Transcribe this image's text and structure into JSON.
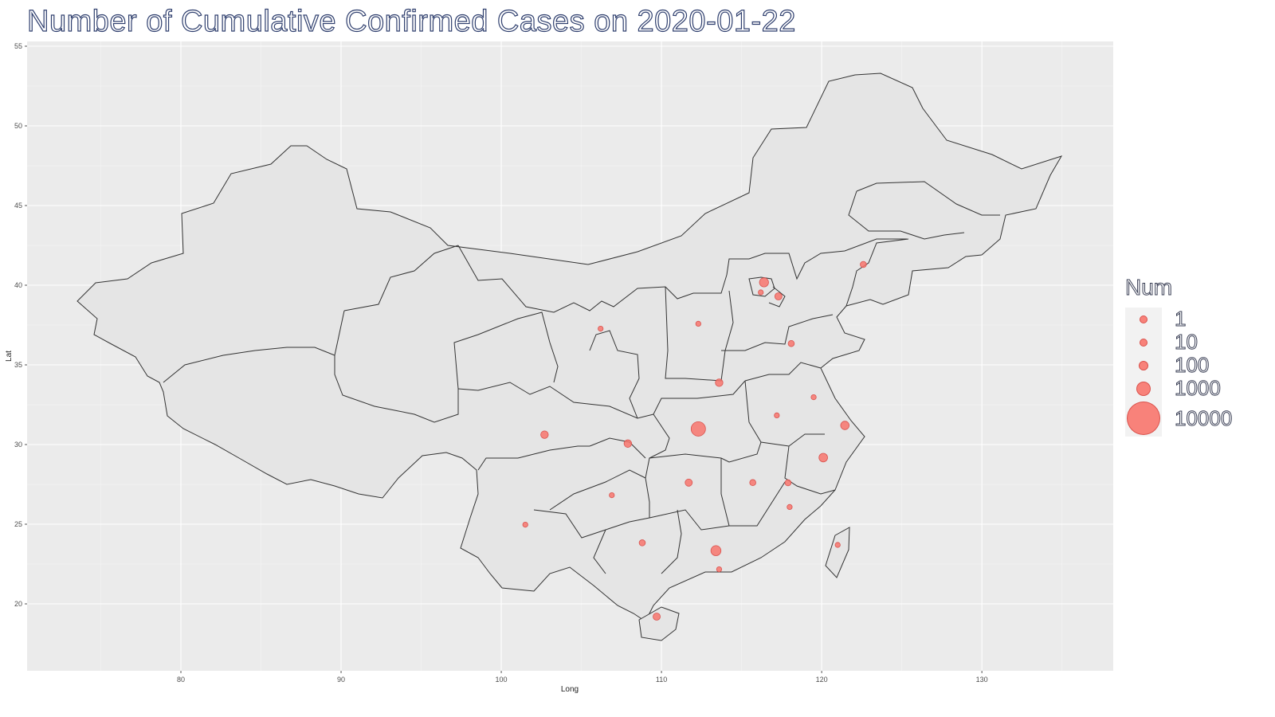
{
  "title": "Number of Cumulative Confirmed Cases on 2020-01-22",
  "chart_data": {
    "type": "scatter",
    "subtype": "bubble-map",
    "xlabel": "Long",
    "ylabel": "Lat",
    "xlim": [
      70.4,
      138.2
    ],
    "ylim": [
      15.8,
      55.3
    ],
    "x_ticks": [
      80,
      90,
      100,
      110,
      120,
      130
    ],
    "y_ticks": [
      20,
      25,
      30,
      35,
      40,
      45,
      50,
      55
    ],
    "grid": true,
    "background": "#ebebeb",
    "point_color": "#F8766D",
    "legend": {
      "title": "Num",
      "position": "right",
      "entries": [
        "1",
        "10",
        "100",
        "1000",
        "10000"
      ],
      "values": [
        1,
        10,
        100,
        1000,
        10000
      ]
    },
    "points": [
      {
        "long": 112.3,
        "lat": 30.98,
        "num": 444
      },
      {
        "long": 113.4,
        "lat": 23.34,
        "num": 26
      },
      {
        "long": 120.1,
        "lat": 29.18,
        "num": 10
      },
      {
        "long": 116.4,
        "lat": 40.18,
        "num": 14
      },
      {
        "long": 121.45,
        "lat": 31.2,
        "num": 9
      },
      {
        "long": 117.9,
        "lat": 27.6,
        "num": 2
      },
      {
        "long": 111.7,
        "lat": 27.61,
        "num": 4
      },
      {
        "long": 117.3,
        "lat": 39.3,
        "num": 4
      },
      {
        "long": 107.9,
        "lat": 30.06,
        "num": 5
      },
      {
        "long": 102.7,
        "lat": 30.62,
        "num": 5
      },
      {
        "long": 101.5,
        "lat": 24.97,
        "num": 1
      },
      {
        "long": 108.8,
        "lat": 23.83,
        "num": 2
      },
      {
        "long": 109.7,
        "lat": 19.2,
        "num": 4
      },
      {
        "long": 115.7,
        "lat": 27.61,
        "num": 2
      },
      {
        "long": 117.2,
        "lat": 31.83,
        "num": 1
      },
      {
        "long": 113.6,
        "lat": 33.88,
        "num": 5
      },
      {
        "long": 118.1,
        "lat": 36.34,
        "num": 2
      },
      {
        "long": 119.5,
        "lat": 32.97,
        "num": 1
      },
      {
        "long": 116.2,
        "lat": 39.55,
        "num": 1
      },
      {
        "long": 112.3,
        "lat": 37.58,
        "num": 1
      },
      {
        "long": 106.9,
        "lat": 26.82,
        "num": 1
      },
      {
        "long": 106.2,
        "lat": 37.27,
        "num": 1
      },
      {
        "long": 122.6,
        "lat": 41.3,
        "num": 2
      },
      {
        "long": 113.6,
        "lat": 22.17,
        "num": 1
      },
      {
        "long": 121.0,
        "lat": 23.7,
        "num": 1
      },
      {
        "long": 118.0,
        "lat": 26.08,
        "num": 1
      }
    ]
  },
  "map": {
    "region_fill": "#e5e5e5",
    "border_color": "#333333"
  }
}
